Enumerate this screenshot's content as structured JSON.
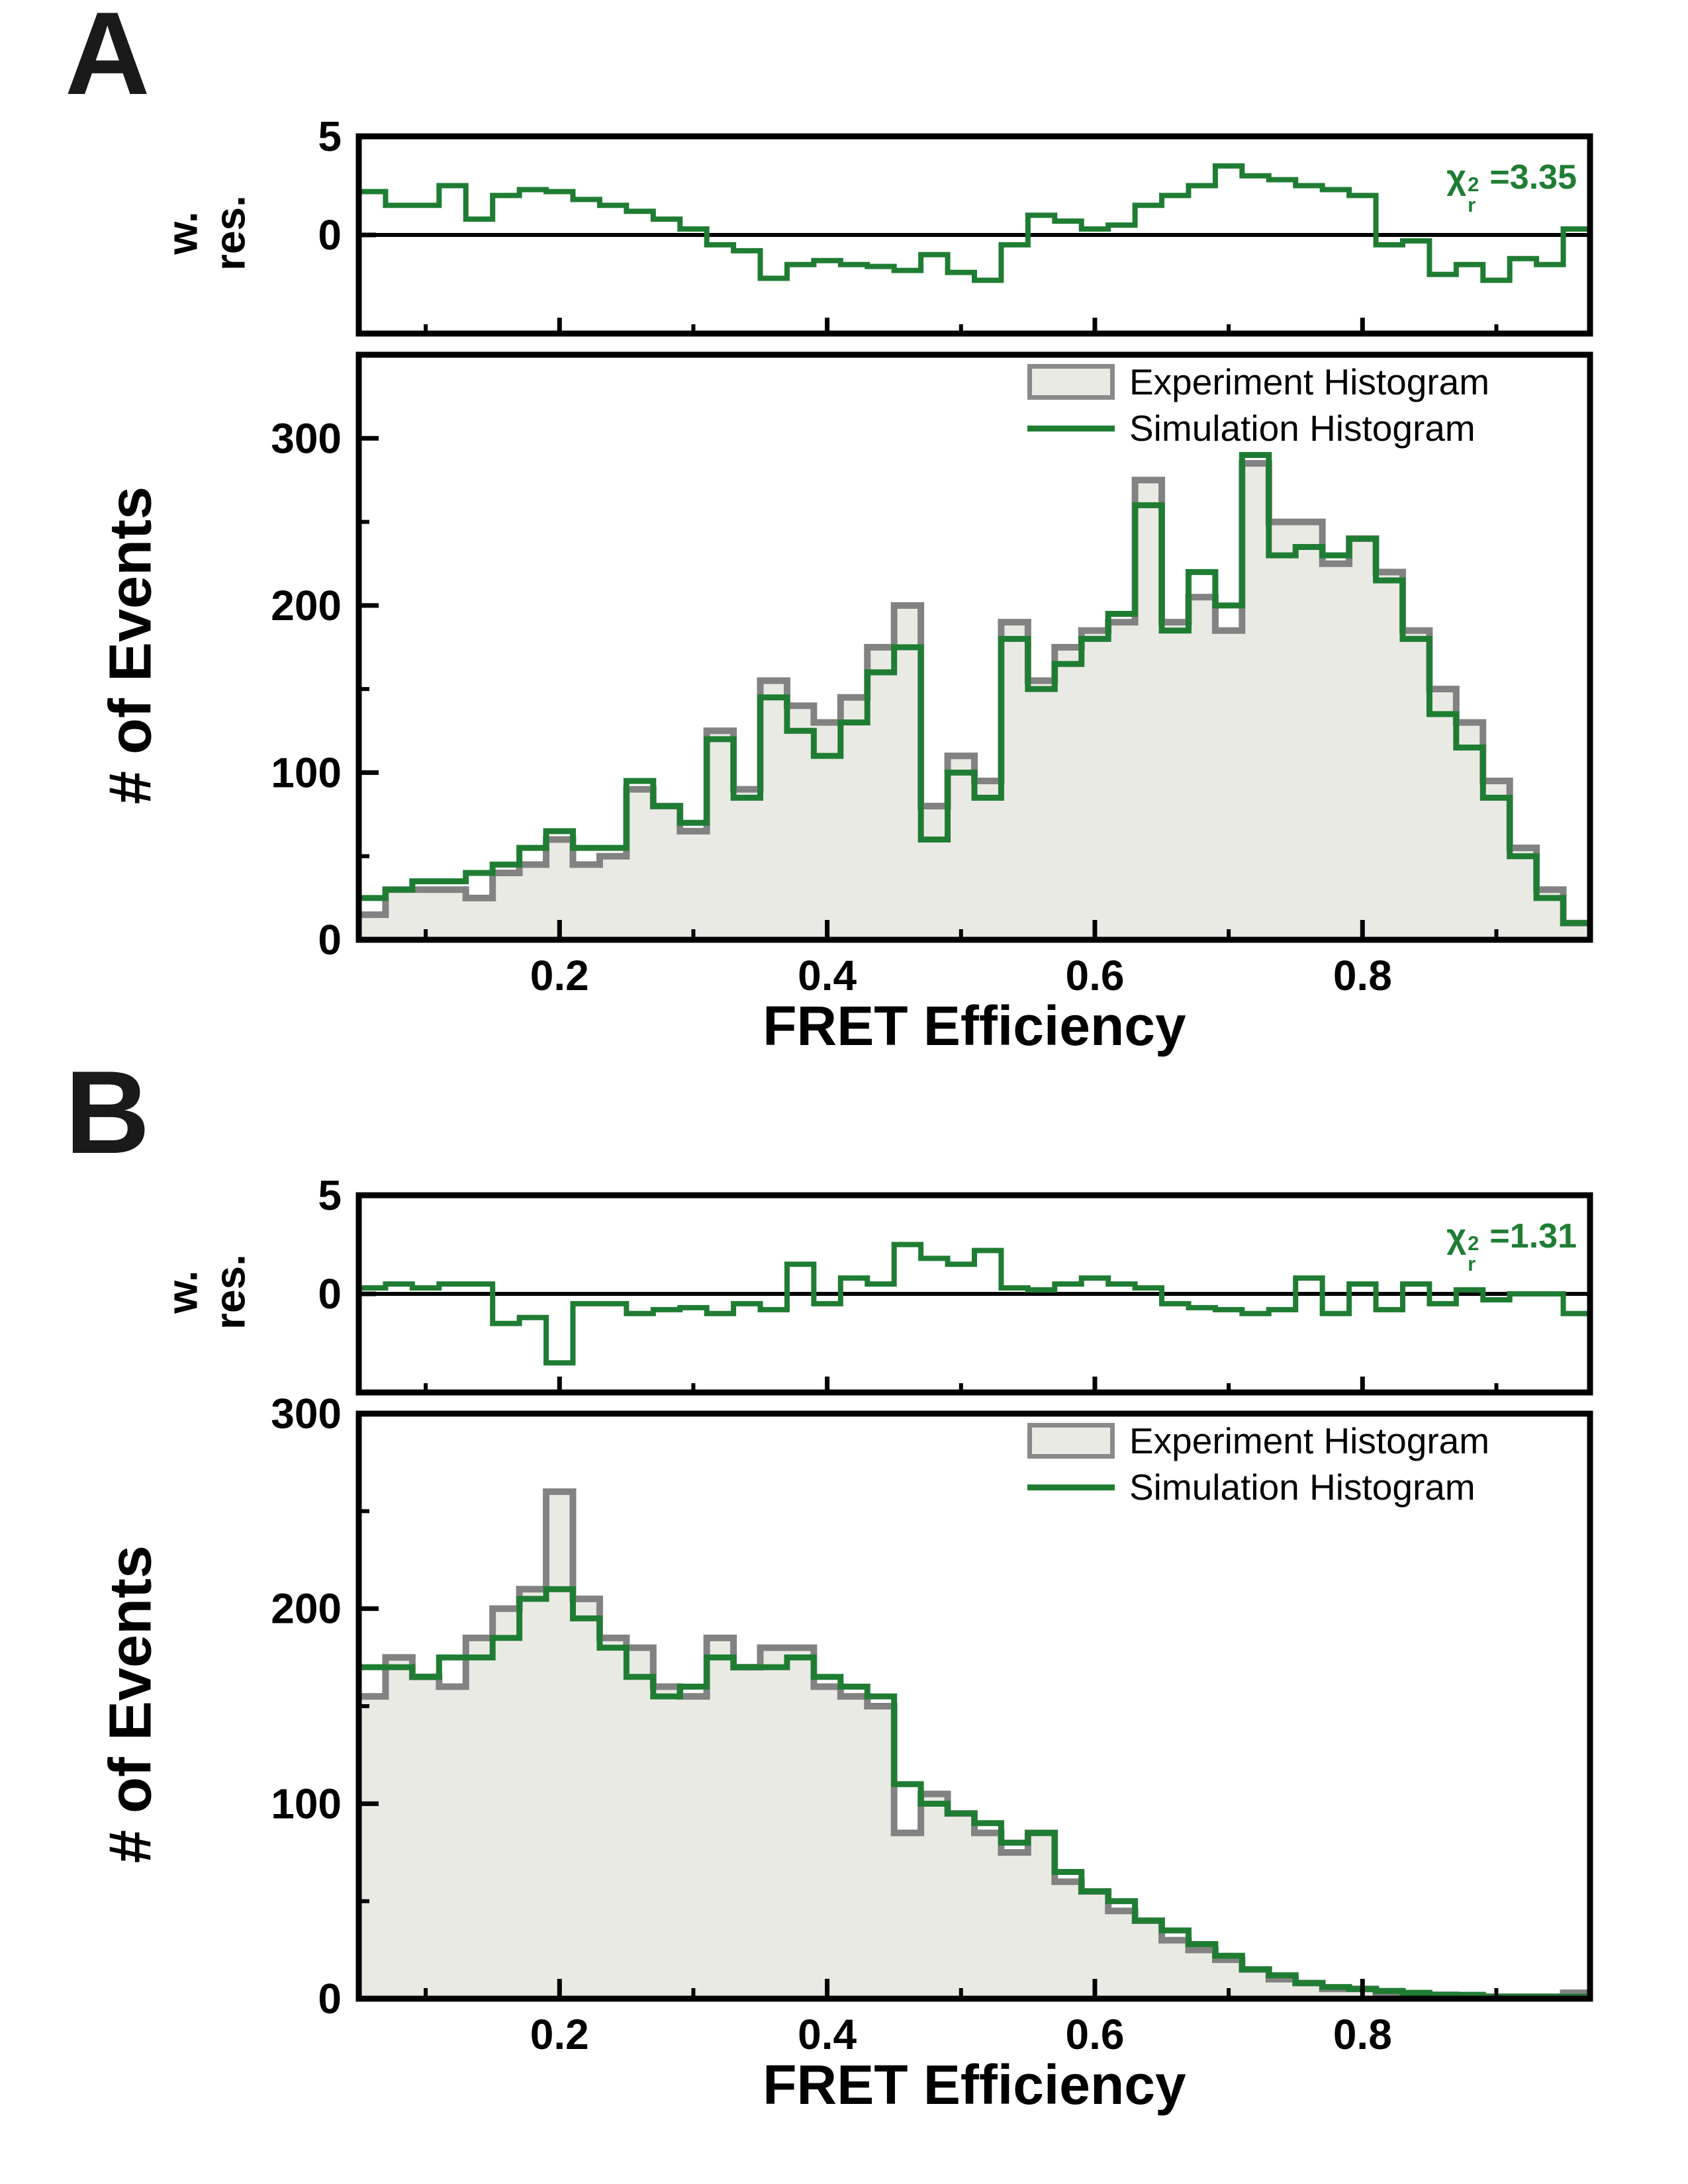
{
  "figure": {
    "background": "#ffffff",
    "colors": {
      "simulation": "#1f7d33",
      "experiment_line": "#828282",
      "experiment_fill": "#eaeae5",
      "axis": "#000000"
    }
  },
  "chart_data": [
    {
      "panel": "A",
      "type": "step-histogram",
      "xlabel": "FRET Efficiency",
      "ylabel": "# of Events",
      "xlim": [
        0.05,
        0.97
      ],
      "ylim": [
        0,
        350
      ],
      "yticks": [
        0,
        100,
        200,
        300
      ],
      "yticks_minor": [
        50,
        150,
        250
      ],
      "xticks": [
        0.2,
        0.4,
        0.6,
        0.8
      ],
      "xticks_minor": [
        0.1,
        0.3,
        0.5,
        0.7,
        0.9
      ],
      "bins": {
        "start": 0.05,
        "width": 0.02
      },
      "legend_position": "upper right",
      "series": [
        {
          "name": "Experiment Histogram",
          "style": "filled-step",
          "values": [
            15,
            30,
            30,
            30,
            25,
            40,
            45,
            60,
            45,
            50,
            90,
            80,
            65,
            125,
            90,
            155,
            140,
            130,
            145,
            175,
            200,
            80,
            110,
            95,
            190,
            155,
            175,
            185,
            190,
            275,
            190,
            205,
            185,
            285,
            250,
            250,
            225,
            240,
            220,
            185,
            150,
            130,
            95,
            55,
            30,
            10
          ]
        },
        {
          "name": "Simulation Histogram",
          "style": "step",
          "values": [
            25,
            30,
            35,
            35,
            40,
            45,
            55,
            65,
            55,
            55,
            95,
            80,
            70,
            120,
            85,
            145,
            125,
            110,
            130,
            160,
            175,
            60,
            100,
            85,
            180,
            150,
            165,
            180,
            195,
            260,
            185,
            220,
            200,
            290,
            230,
            235,
            230,
            240,
            215,
            180,
            135,
            115,
            85,
            50,
            25,
            10
          ]
        }
      ],
      "residuals": {
        "ylabel": "w.\nres.",
        "ylim": [
          -5,
          5
        ],
        "yticks": [
          0,
          5
        ],
        "chi_symbol": "χ",
        "chi_sup": "2",
        "chi_sub": "r",
        "chi_equals": "=",
        "chi_value": "3.35",
        "values": [
          2.2,
          1.5,
          1.5,
          2.5,
          0.8,
          2.0,
          2.3,
          2.2,
          1.8,
          1.5,
          1.2,
          0.8,
          0.3,
          -0.5,
          -0.8,
          -2.2,
          -1.5,
          -1.3,
          -1.5,
          -1.6,
          -1.8,
          -1.0,
          -1.9,
          -2.3,
          -0.5,
          1.0,
          0.7,
          0.3,
          0.5,
          1.5,
          2.0,
          2.5,
          3.5,
          3.0,
          2.8,
          2.5,
          2.3,
          2.0,
          -0.5,
          -0.3,
          -2.0,
          -1.5,
          -2.3,
          -1.2,
          -1.5,
          0.3
        ]
      }
    },
    {
      "panel": "B",
      "type": "step-histogram",
      "xlabel": "FRET Efficiency",
      "ylabel": "# of Events",
      "xlim": [
        0.05,
        0.97
      ],
      "ylim": [
        0,
        300
      ],
      "yticks": [
        0,
        100,
        200,
        300
      ],
      "yticks_minor": [
        50,
        150,
        250
      ],
      "xticks": [
        0.2,
        0.4,
        0.6,
        0.8
      ],
      "xticks_minor": [
        0.1,
        0.3,
        0.5,
        0.7,
        0.9
      ],
      "bins": {
        "start": 0.05,
        "width": 0.02
      },
      "legend_position": "upper right",
      "series": [
        {
          "name": "Experiment Histogram",
          "style": "filled-step",
          "values": [
            155,
            175,
            165,
            160,
            185,
            200,
            210,
            260,
            205,
            185,
            180,
            160,
            155,
            185,
            170,
            180,
            180,
            160,
            155,
            150,
            85,
            105,
            95,
            85,
            75,
            85,
            60,
            55,
            45,
            40,
            30,
            25,
            20,
            15,
            10,
            8,
            5,
            5,
            3,
            2,
            2,
            1,
            1,
            1,
            1,
            3
          ]
        },
        {
          "name": "Simulation Histogram",
          "style": "step",
          "values": [
            170,
            170,
            165,
            175,
            175,
            185,
            205,
            210,
            195,
            180,
            165,
            155,
            160,
            175,
            170,
            170,
            175,
            165,
            160,
            155,
            110,
            100,
            95,
            90,
            80,
            85,
            65,
            55,
            50,
            40,
            35,
            28,
            22,
            15,
            12,
            8,
            6,
            5,
            4,
            3,
            2,
            2,
            1,
            1,
            1,
            1
          ]
        }
      ],
      "residuals": {
        "ylabel": "w.\nres.",
        "ylim": [
          -5,
          5
        ],
        "yticks": [
          0,
          5
        ],
        "chi_symbol": "χ",
        "chi_sup": "2",
        "chi_sub": "r",
        "chi_equals": "=",
        "chi_value": "1.31",
        "values": [
          0.3,
          0.5,
          0.3,
          0.5,
          0.5,
          -1.5,
          -1.2,
          -3.5,
          -0.5,
          -0.5,
          -1.0,
          -0.8,
          -0.7,
          -1.0,
          -0.5,
          -0.8,
          1.5,
          -0.5,
          0.8,
          0.5,
          2.5,
          1.8,
          1.5,
          2.2,
          0.3,
          0.2,
          0.5,
          0.8,
          0.5,
          0.3,
          -0.5,
          -0.7,
          -0.8,
          -1.0,
          -0.8,
          0.8,
          -1.0,
          0.5,
          -0.8,
          0.5,
          -0.5,
          0.2,
          -0.3,
          0.0,
          0.0,
          -1.0
        ]
      }
    }
  ]
}
